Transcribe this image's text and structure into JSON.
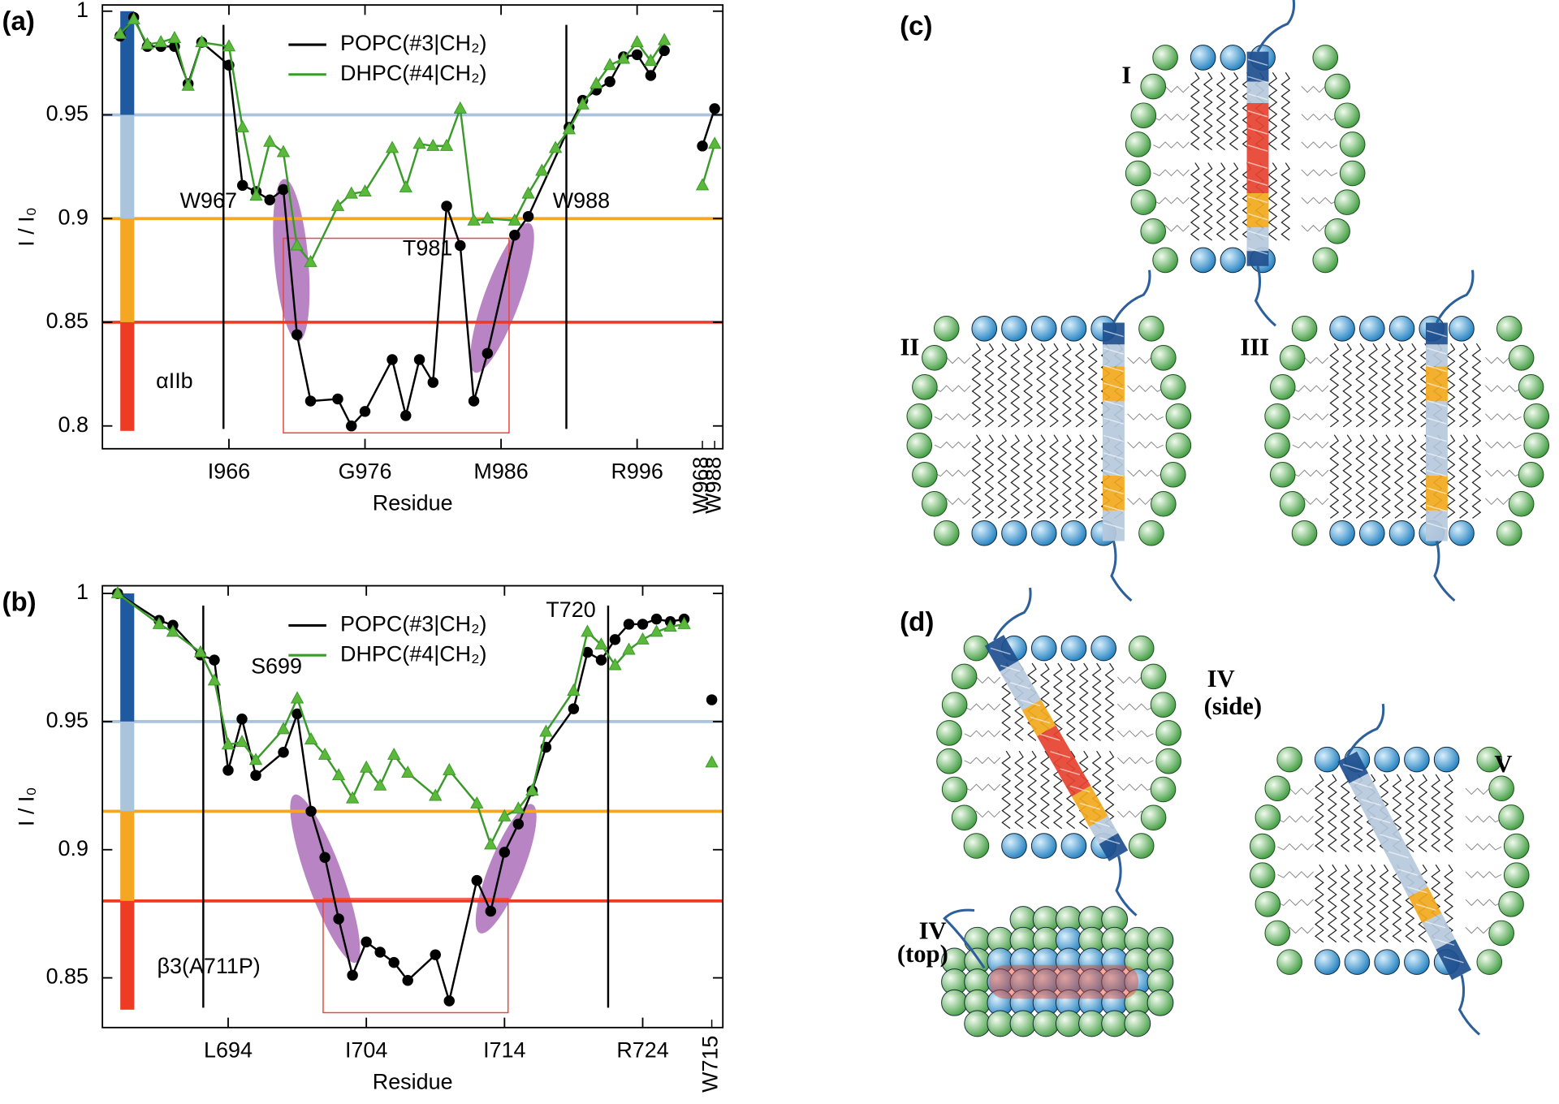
{
  "chart_data": [
    {
      "type": "line",
      "label": "(a)",
      "x_label": "Residue",
      "y_label": "I / I₀",
      "xlim": [
        956.7,
        1002.3
      ],
      "ylim": [
        0.789,
        1.003
      ],
      "xticks": [
        {
          "value": 966,
          "label": "I966"
        },
        {
          "value": 976,
          "label": "G976"
        },
        {
          "value": 986,
          "label": "M986"
        },
        {
          "value": 996,
          "label": "R996"
        }
      ],
      "xticks_rotated": [
        {
          "value": 1000.8,
          "label": "W968"
        },
        {
          "value": 1001.7,
          "label": "W988"
        }
      ],
      "yticks": [
        0.8,
        0.85,
        0.9,
        0.95,
        1
      ],
      "thresholds": [
        {
          "value": 0.95,
          "color": "#a9c4dc"
        },
        {
          "value": 0.9,
          "color": "#f5a623"
        },
        {
          "value": 0.85,
          "color": "#ee3b24"
        }
      ],
      "band_colors": [
        "#1f5aa0",
        "#a9c4dc",
        "#f5a623",
        "#ee3b24"
      ],
      "vlines": [
        965.6,
        990.8
      ],
      "legend": "upper center",
      "annotations": [
        {
          "text": "W967",
          "x": 964.5,
          "y": 0.908
        },
        {
          "text": "T981",
          "x": 980.6,
          "y": 0.885
        },
        {
          "text": "W988",
          "x": 991.9,
          "y": 0.908
        },
        {
          "text": "αIIb",
          "x": 962,
          "y": 0.821
        }
      ],
      "series": [
        {
          "name": "POPC(#3|CH₂)",
          "color": "#000000",
          "marker": "circle",
          "x": [
            958,
            959,
            960,
            961,
            962,
            963,
            964,
            966,
            967,
            968,
            969,
            970,
            971,
            972,
            974,
            975,
            976,
            978,
            979,
            980,
            981,
            982,
            983,
            984,
            985,
            987,
            988,
            991,
            992,
            993,
            994,
            995,
            996,
            997,
            998
          ],
          "values": [
            0.988,
            0.997,
            0.983,
            0.983,
            0.983,
            0.965,
            0.985,
            0.974,
            0.916,
            0.913,
            0.909,
            0.914,
            0.844,
            0.812,
            0.813,
            0.8,
            0.807,
            0.832,
            0.805,
            0.832,
            0.821,
            0.906,
            0.887,
            0.812,
            0.835,
            0.892,
            0.901,
            0.944,
            0.957,
            0.962,
            0.966,
            0.978,
            0.979,
            0.969,
            0.981
          ]
        },
        {
          "name": "DHPC(#4|CH₂)",
          "color": "#3a9a2a",
          "marker": "triangle",
          "x": [
            958,
            959,
            960,
            961,
            962,
            963,
            964,
            966,
            967,
            968,
            969,
            970,
            971,
            972,
            974,
            975,
            976,
            978,
            979,
            980,
            981,
            982,
            983,
            984,
            985,
            987,
            988,
            989,
            990,
            991,
            992,
            993,
            994,
            995,
            996,
            997,
            998
          ],
          "values": [
            0.989,
            0.996,
            0.984,
            0.985,
            0.987,
            0.964,
            0.985,
            0.983,
            0.944,
            0.911,
            0.937,
            0.932,
            0.887,
            0.879,
            0.906,
            0.912,
            0.913,
            0.934,
            0.915,
            0.936,
            0.935,
            0.935,
            0.953,
            0.899,
            0.9,
            0.899,
            0.912,
            0.923,
            0.934,
            0.943,
            0.955,
            0.965,
            0.974,
            0.977,
            0.985,
            0.976,
            0.986
          ]
        },
        {
          "color": "#000000",
          "marker": "circle",
          "x": [
            1000.8,
            1001.7
          ],
          "values": [
            0.935,
            0.953
          ]
        },
        {
          "color": "#3a9a2a",
          "marker": "triangle",
          "x": [
            1000.8,
            1001.7
          ],
          "values": [
            0.916,
            0.936
          ]
        }
      ]
    },
    {
      "type": "line",
      "label": "(b)",
      "x_label": "Residue",
      "y_label": "I / I₀",
      "xlim": [
        684.9,
        729.8
      ],
      "ylim": [
        0.8306,
        1.003
      ],
      "xticks": [
        {
          "value": 694,
          "label": "L694"
        },
        {
          "value": 704,
          "label": "I704"
        },
        {
          "value": 714,
          "label": "I714"
        },
        {
          "value": 724,
          "label": "R724"
        }
      ],
      "xticks_rotated": [
        {
          "value": 729,
          "label": "W715"
        }
      ],
      "yticks": [
        0.85,
        0.9,
        0.95,
        1
      ],
      "thresholds": [
        {
          "value": 0.95,
          "color": "#a9c4dc"
        },
        {
          "value": 0.915,
          "color": "#f5a623"
        },
        {
          "value": 0.88,
          "color": "#ee3b24"
        }
      ],
      "band_colors": [
        "#1f5aa0",
        "#a9c4dc",
        "#f5a623",
        "#ee3b24"
      ],
      "vlines": [
        692.2,
        721.5
      ],
      "legend": "upper center",
      "annotations": [
        {
          "text": "S699",
          "x": 697.5,
          "y": 0.971
        },
        {
          "text": "T720",
          "x": 718.8,
          "y": 0.993
        },
        {
          "text": "β3(A711P)",
          "x": 692.6,
          "y": 0.854
        }
      ],
      "series": [
        {
          "name": "POPC(#3|CH₂)",
          "color": "#000000",
          "marker": "circle",
          "x": [
            686,
            689,
            690,
            692,
            693,
            694,
            695,
            696,
            698,
            699,
            700,
            701,
            702,
            703,
            704,
            705,
            706,
            707,
            709,
            710,
            712,
            713,
            714,
            715,
            716,
            717,
            719,
            720,
            721,
            722,
            723,
            724,
            725,
            726,
            727
          ],
          "values": [
            1,
            0.9895,
            0.9876,
            0.976,
            0.974,
            0.931,
            0.951,
            0.929,
            0.938,
            0.953,
            0.915,
            0.897,
            0.873,
            0.851,
            0.864,
            0.86,
            0.856,
            0.849,
            0.859,
            0.841,
            0.888,
            0.876,
            0.899,
            0.91,
            0.923,
            0.94,
            0.955,
            0.977,
            0.974,
            0.982,
            0.988,
            0.988,
            0.99,
            0.989,
            0.99
          ]
        },
        {
          "name": "DHPC(#4|CH₂)",
          "color": "#3a9a2a",
          "marker": "triangle",
          "x": [
            686,
            689,
            690,
            692,
            693,
            694,
            695,
            696,
            698,
            699,
            700,
            701,
            702,
            703,
            704,
            705,
            706,
            707,
            709,
            710,
            712,
            713,
            714,
            715,
            716,
            717,
            719,
            720,
            721,
            722,
            723,
            724,
            725,
            726,
            727
          ],
          "values": [
            1,
            0.988,
            0.985,
            0.977,
            0.966,
            0.941,
            0.942,
            0.935,
            0.947,
            0.959,
            0.943,
            0.937,
            0.929,
            0.92,
            0.932,
            0.925,
            0.937,
            0.93,
            0.921,
            0.931,
            0.918,
            0.902,
            0.913,
            0.916,
            0.923,
            0.946,
            0.962,
            0.985,
            0.98,
            0.972,
            0.978,
            0.982,
            0.985,
            0.987,
            0.988
          ]
        },
        {
          "color": "#000000",
          "marker": "circle",
          "x": [
            729
          ],
          "values": [
            0.9585
          ]
        },
        {
          "color": "#3a9a2a",
          "marker": "triangle",
          "x": [
            729
          ],
          "values": [
            0.934
          ]
        }
      ]
    }
  ],
  "diagrams": [
    {
      "label": "(c)",
      "models": [
        {
          "label": "I"
        },
        {
          "label": "II"
        },
        {
          "label": "III"
        }
      ]
    },
    {
      "label": "(d)",
      "models": [
        {
          "label": "IV",
          "view": "(side)"
        },
        {
          "label": "V"
        },
        {
          "label": "IV",
          "view": "(top)"
        }
      ]
    }
  ]
}
